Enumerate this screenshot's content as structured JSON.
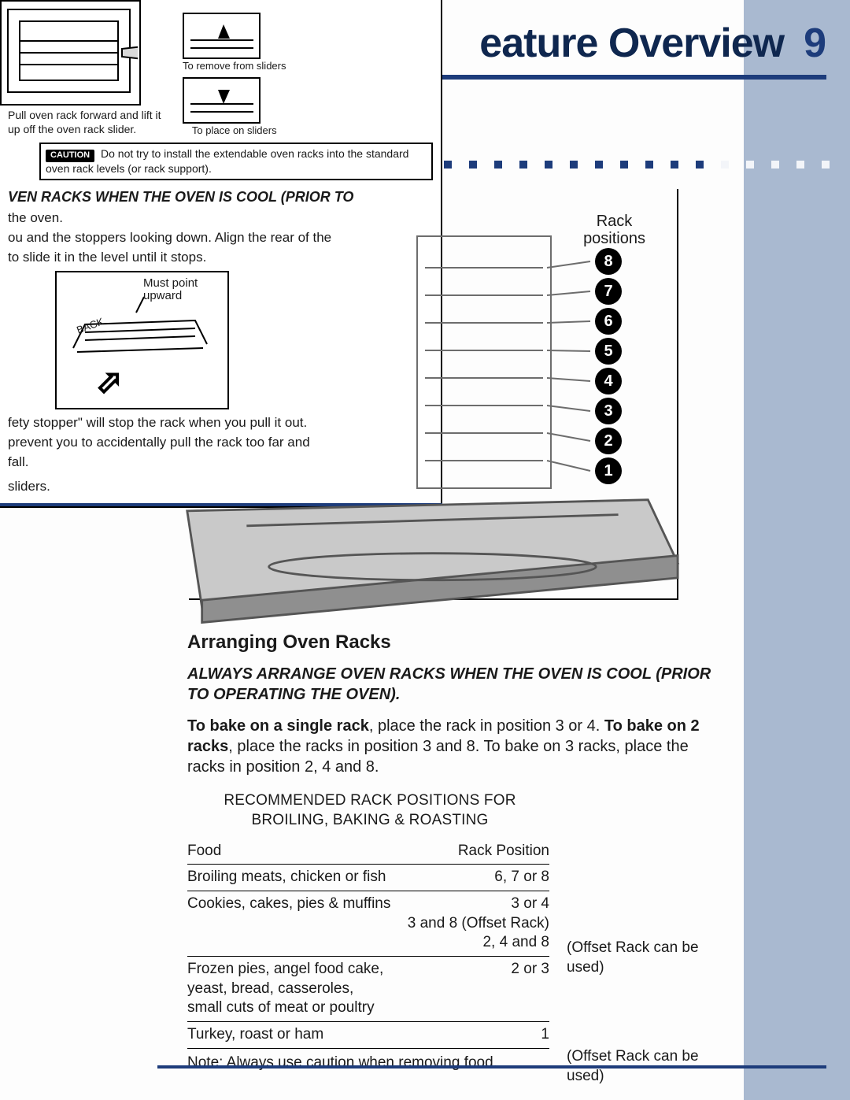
{
  "header": {
    "title": "eature Overview",
    "page": "9"
  },
  "sidebar_color": "#a9b9d0",
  "blue": "#1d3c7b",
  "dots": {
    "dark_count": 12,
    "light_count": 5
  },
  "inset": {
    "remove_caption": "To remove from sliders",
    "place_caption": "To place on sliders",
    "pull_text": "Pull oven rack forward and lift it up off the oven rack slider.",
    "caution_label": "CAUTION",
    "caution_text": "Do not try to install the extendable oven racks into the standard oven rack levels (or rack support).",
    "bold_line": "VEN RACKS WHEN THE OVEN IS COOL (PRIOR TO",
    "line2": "the oven.",
    "line3": "ou and the stoppers looking down. Align the rear of the",
    "line4": "to slide it in the level until it stops.",
    "rack_label1": "Must point",
    "rack_label2": "upward",
    "rack_back": "BACK",
    "stopper1": "fety stopper\" will stop the rack when you pull it out.",
    "stopper2": "prevent you to accidentally pull the rack too far and",
    "stopper3": "fall.",
    "sliders": "sliders."
  },
  "rackfig": {
    "label": "Rack positions",
    "numbers": [
      "8",
      "7",
      "6",
      "5",
      "4",
      "3",
      "2",
      "1"
    ]
  },
  "arranging": {
    "heading": "Arranging Oven Racks",
    "warn": "ALWAYS ARRANGE OVEN RACKS WHEN THE OVEN IS COOL (PRIOR TO OPERATING THE OVEN).",
    "bake_html_parts": {
      "p1a": "To bake on a single rack",
      "p1b": ", place the rack in position 3 or 4. ",
      "p2a": "To bake on 2 racks",
      "p2b": ", place the racks in position 3 and 8. To bake on 3 racks, place the racks in position 2, 4 and 8."
    },
    "table_title": "RECOMMENDED RACK POSITIONS FOR BROILING, BAKING & ROASTING",
    "columns": [
      "Food",
      "Rack Position"
    ],
    "rows": [
      {
        "food": "Broiling meats, chicken or fish",
        "pos": "6, 7 or 8"
      },
      {
        "food": "Cookies, cakes, pies & muffins",
        "pos": "3 or 4\n3 and 8 (Offset Rack)\n2, 4 and 8"
      },
      {
        "food": "Frozen pies, angel food cake, yeast, bread, casseroles, small cuts of meat or poultry",
        "pos": "2 or 3"
      },
      {
        "food": "Turkey, roast or ham",
        "pos": "1"
      }
    ],
    "offset_note": "(Offset Rack can be used)",
    "table_note": "Note: Always use caution when removing food."
  }
}
